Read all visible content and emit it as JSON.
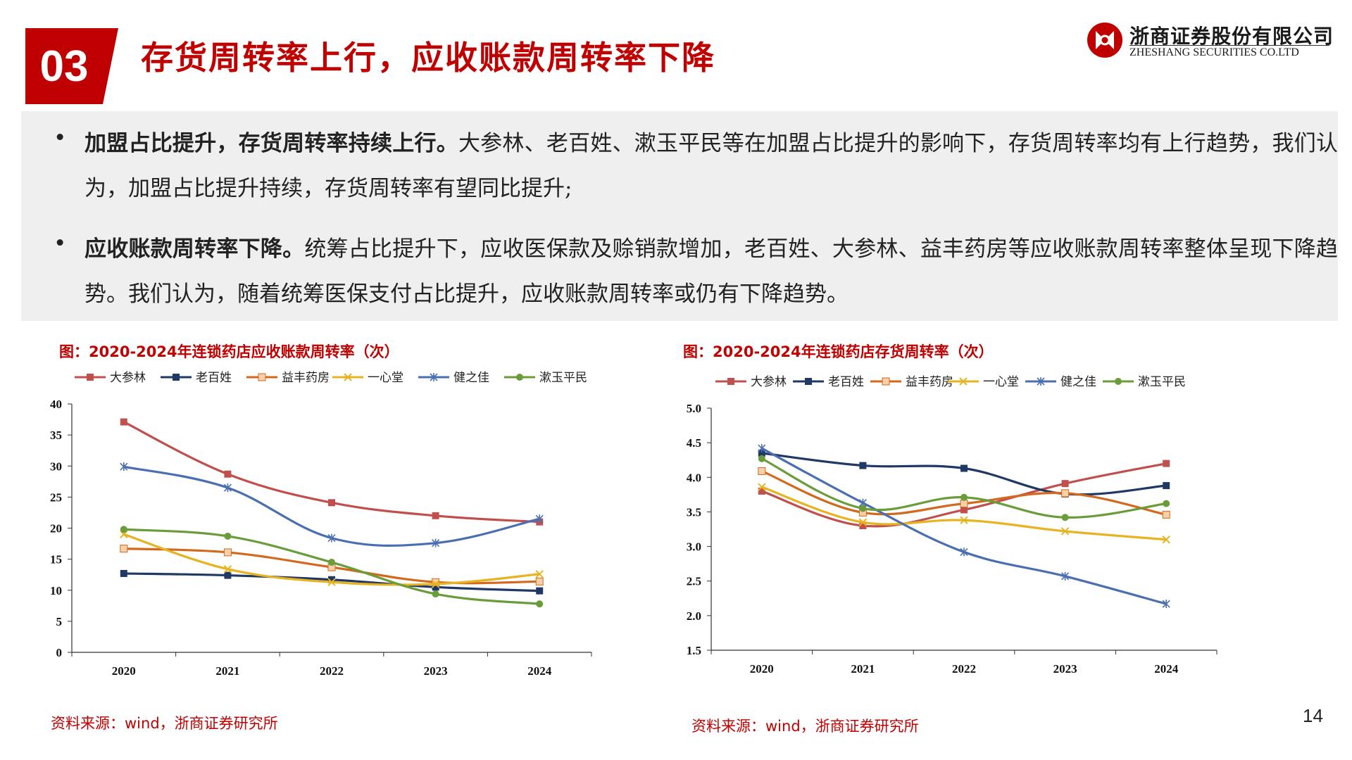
{
  "header": {
    "section_number": "03",
    "title": "存货周转率上行，应收账款周转率下降",
    "logo_cn": "浙商证券股份有限公司",
    "logo_en": "ZHESHANG SECURITIES CO.LTD",
    "brand_color": "#c00000"
  },
  "summary": {
    "p1_bold": "加盟占比提升，存货周转率持续上行。",
    "p1_text": "大参林、老百姓、漱玉平民等在加盟占比提升的影响下，存货周转率均有上行趋势，我们认为，加盟占比提升持续，存货周转率有望同比提升;",
    "p2_bold": "应收账款周转率下降。",
    "p2_text": "统筹占比提升下，应收医保款及赊销款增加，老百姓、大参林、益丰药房等应收账款周转率整体呈现下降趋势。我们认为，随着统筹医保支付占比提升，应收账款周转率或仍有下降趋势。"
  },
  "chart_data": [
    {
      "type": "line",
      "title": "图：2020-2024年连锁药店应收账款周转率（次）",
      "categories": [
        "2020",
        "2021",
        "2022",
        "2023",
        "2024"
      ],
      "ylim": [
        0,
        40
      ],
      "yticks": [
        "0",
        "5",
        "10",
        "15",
        "20",
        "25",
        "30",
        "35",
        "40"
      ],
      "series": [
        {
          "name": "大参林",
          "color": "#c0504d",
          "marker": "square",
          "values": [
            37.1,
            28.7,
            24.1,
            22.0,
            21.0
          ]
        },
        {
          "name": "老百姓",
          "color": "#1f3864",
          "marker": "square",
          "values": [
            12.7,
            12.4,
            11.7,
            10.5,
            9.9
          ]
        },
        {
          "name": "益丰药房",
          "color": "#d2691e",
          "marker": "square-open",
          "values": [
            16.7,
            16.1,
            13.7,
            11.3,
            11.4
          ]
        },
        {
          "name": "一心堂",
          "color": "#e6b422",
          "marker": "x",
          "values": [
            19.0,
            13.4,
            11.3,
            11.0,
            12.6
          ]
        },
        {
          "name": "健之佳",
          "color": "#4a6fb0",
          "marker": "star",
          "values": [
            29.9,
            26.5,
            18.4,
            17.6,
            21.5
          ]
        },
        {
          "name": "漱玉平民",
          "color": "#6a9c3a",
          "marker": "circle",
          "values": [
            19.8,
            18.7,
            14.5,
            9.4,
            7.8
          ]
        }
      ],
      "source": "资料来源：wind，浙商证券研究所"
    },
    {
      "type": "line",
      "title": "图：2020-2024年连锁药店存货周转率（次）",
      "categories": [
        "2020",
        "2021",
        "2022",
        "2023",
        "2024"
      ],
      "ylim": [
        1.5,
        5.0
      ],
      "yticks": [
        "1.5",
        "2.0",
        "2.5",
        "3.0",
        "3.5",
        "4.0",
        "4.5",
        "5.0"
      ],
      "series": [
        {
          "name": "大参林",
          "color": "#c0504d",
          "marker": "square",
          "values": [
            3.8,
            3.3,
            3.53,
            3.91,
            4.2
          ]
        },
        {
          "name": "老百姓",
          "color": "#1f3864",
          "marker": "square",
          "values": [
            4.35,
            4.17,
            4.13,
            3.76,
            3.88
          ]
        },
        {
          "name": "益丰药房",
          "color": "#d2691e",
          "marker": "square-open",
          "values": [
            4.09,
            3.49,
            3.62,
            3.77,
            3.46
          ]
        },
        {
          "name": "一心堂",
          "color": "#e6b422",
          "marker": "x",
          "values": [
            3.86,
            3.35,
            3.38,
            3.22,
            3.1
          ]
        },
        {
          "name": "健之佳",
          "color": "#4a6fb0",
          "marker": "star",
          "values": [
            4.42,
            3.63,
            2.92,
            2.57,
            2.17
          ]
        },
        {
          "name": "漱玉平民",
          "color": "#6a9c3a",
          "marker": "circle",
          "values": [
            4.27,
            3.55,
            3.71,
            3.42,
            3.62
          ]
        }
      ],
      "source": "资料来源：wind，浙商证券研究所"
    }
  ],
  "page_number": "14"
}
